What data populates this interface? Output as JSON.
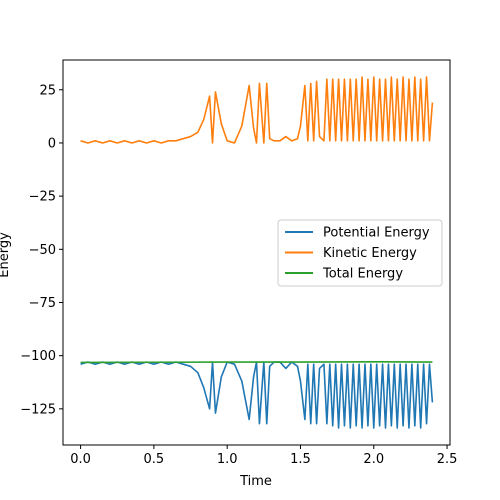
{
  "chart_data": {
    "type": "line",
    "title": "",
    "xlabel": "Time",
    "ylabel": "Energy",
    "xlim": [
      -0.12,
      2.52
    ],
    "ylim": [
      -142,
      39
    ],
    "xticks": [
      0.0,
      0.5,
      1.0,
      1.5,
      2.0,
      2.5
    ],
    "xtick_labels": [
      "0.0",
      "0.5",
      "1.0",
      "1.5",
      "2.0",
      "2.5"
    ],
    "yticks": [
      -125,
      -100,
      -75,
      -50,
      -25,
      0,
      25
    ],
    "ytick_labels": [
      "−125",
      "−100",
      "−75",
      "−50",
      "−25",
      "0",
      "25"
    ],
    "grid": false,
    "legend_position": "center-right",
    "series": [
      {
        "name": "Potential Energy",
        "color": "#1f77b4",
        "x": [
          0.0,
          0.05,
          0.1,
          0.15,
          0.2,
          0.25,
          0.3,
          0.35,
          0.4,
          0.45,
          0.5,
          0.55,
          0.6,
          0.65,
          0.7,
          0.75,
          0.8,
          0.84,
          0.88,
          0.9,
          0.92,
          0.96,
          1.0,
          1.05,
          1.1,
          1.15,
          1.18,
          1.2,
          1.22,
          1.25,
          1.27,
          1.29,
          1.32,
          1.36,
          1.4,
          1.44,
          1.48,
          1.5,
          1.53,
          1.55,
          1.57,
          1.59,
          1.61,
          1.63,
          1.66,
          1.68,
          1.7,
          1.72,
          1.74,
          1.76,
          1.78,
          1.8,
          1.82,
          1.84,
          1.86,
          1.88,
          1.9,
          1.92,
          1.94,
          1.96,
          1.98,
          2.0,
          2.02,
          2.04,
          2.06,
          2.08,
          2.1,
          2.12,
          2.14,
          2.16,
          2.18,
          2.2,
          2.22,
          2.24,
          2.26,
          2.28,
          2.3,
          2.32,
          2.34,
          2.36,
          2.38,
          2.4
        ],
        "values": [
          -104,
          -103,
          -104,
          -103,
          -104,
          -103,
          -104,
          -103,
          -104,
          -103,
          -104,
          -103,
          -104,
          -103,
          -104,
          -105,
          -108,
          -115,
          -125,
          -103,
          -127,
          -110,
          -103,
          -104,
          -112,
          -130,
          -110,
          -103,
          -132,
          -103,
          -132,
          -105,
          -103,
          -103,
          -106,
          -103,
          -105,
          -112,
          -130,
          -104,
          -132,
          -104,
          -132,
          -106,
          -104,
          -132,
          -104,
          -133,
          -104,
          -134,
          -104,
          -133,
          -104,
          -134,
          -104,
          -133,
          -104,
          -134,
          -104,
          -133,
          -104,
          -134,
          -104,
          -133,
          -104,
          -134,
          -104,
          -133,
          -104,
          -134,
          -104,
          -133,
          -104,
          -134,
          -104,
          -133,
          -104,
          -134,
          -104,
          -132,
          -104,
          -122
        ]
      },
      {
        "name": "Kinetic Energy",
        "color": "#ff7f0e",
        "x": [
          0.0,
          0.05,
          0.1,
          0.15,
          0.2,
          0.25,
          0.3,
          0.35,
          0.4,
          0.45,
          0.5,
          0.55,
          0.6,
          0.65,
          0.7,
          0.75,
          0.8,
          0.84,
          0.88,
          0.9,
          0.92,
          0.96,
          1.0,
          1.05,
          1.1,
          1.15,
          1.18,
          1.2,
          1.22,
          1.25,
          1.27,
          1.29,
          1.32,
          1.36,
          1.4,
          1.44,
          1.48,
          1.5,
          1.53,
          1.55,
          1.57,
          1.59,
          1.61,
          1.63,
          1.66,
          1.68,
          1.7,
          1.72,
          1.74,
          1.76,
          1.78,
          1.8,
          1.82,
          1.84,
          1.86,
          1.88,
          1.9,
          1.92,
          1.94,
          1.96,
          1.98,
          2.0,
          2.02,
          2.04,
          2.06,
          2.08,
          2.1,
          2.12,
          2.14,
          2.16,
          2.18,
          2.2,
          2.22,
          2.24,
          2.26,
          2.28,
          2.3,
          2.32,
          2.34,
          2.36,
          2.38,
          2.4
        ],
        "values": [
          1,
          0,
          1,
          0,
          1,
          0,
          1,
          0,
          1,
          0,
          1,
          0,
          1,
          1,
          2,
          3,
          5,
          11,
          22,
          0,
          24,
          9,
          1,
          0,
          8,
          27,
          7,
          0,
          28,
          0,
          28,
          2,
          1,
          1,
          3,
          1,
          2,
          8,
          27,
          1,
          28,
          1,
          29,
          3,
          1,
          30,
          1,
          30,
          1,
          30,
          1,
          30,
          1,
          30,
          1,
          30,
          1,
          31,
          1,
          30,
          1,
          31,
          1,
          30,
          1,
          30,
          1,
          31,
          1,
          30,
          1,
          31,
          1,
          30,
          1,
          31,
          1,
          30,
          1,
          31,
          1,
          19
        ]
      },
      {
        "name": "Total Energy",
        "color": "#2ca02c",
        "x": [
          0.0,
          0.5,
          1.0,
          1.5,
          2.0,
          2.4
        ],
        "values": [
          -103.2,
          -103.1,
          -103.0,
          -103.0,
          -102.9,
          -103.0
        ]
      }
    ]
  }
}
